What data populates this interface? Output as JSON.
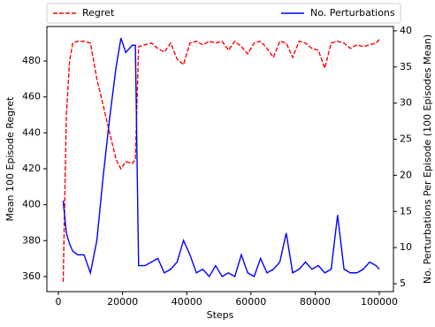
{
  "chart_data": {
    "type": "line",
    "xlabel": "Steps",
    "ylabel": "Mean 100 Episode Regret",
    "y2label": "No. Perturbations Per Episode (100 Episodes Mean)",
    "x": [
      1500,
      2500,
      3500,
      4500,
      6000,
      8000,
      10000,
      12000,
      14000,
      16000,
      18000,
      19500,
      21000,
      23000,
      24000,
      25000,
      27000,
      29000,
      31000,
      33000,
      35000,
      37000,
      39000,
      41000,
      43000,
      45000,
      47000,
      49000,
      51000,
      53000,
      55000,
      57000,
      59000,
      61000,
      63000,
      65000,
      67000,
      69000,
      71000,
      73000,
      75000,
      77000,
      79000,
      81000,
      83000,
      85000,
      87000,
      89000,
      91000,
      93000,
      95000,
      97000,
      99000,
      100000
    ],
    "series": [
      {
        "name": "Regret",
        "color": "#ff0000",
        "dashed": true,
        "axis": "y",
        "values": [
          357,
          450,
          480,
          490,
          491,
          491,
          490,
          470,
          455,
          440,
          425,
          420,
          424,
          423,
          425,
          488,
          489,
          490,
          487,
          485,
          490,
          481,
          478,
          490,
          491,
          489,
          491,
          490,
          491,
          486,
          491,
          488,
          484,
          490,
          491,
          487,
          482,
          491,
          490,
          482,
          491,
          490,
          487,
          486,
          476,
          490,
          491,
          490,
          487,
          489,
          488,
          489,
          490,
          492
        ]
      },
      {
        "name": "No. Perturbations",
        "color": "#0000ff",
        "dashed": false,
        "axis": "y2",
        "values": [
          16.5,
          12,
          10.5,
          9.5,
          9,
          9,
          6.5,
          11,
          20,
          28,
          35,
          39,
          37,
          38,
          38,
          7.5,
          7.5,
          8,
          8.5,
          6.5,
          7,
          8,
          11,
          9,
          6.5,
          7,
          6,
          7.5,
          6,
          6.5,
          6,
          9,
          6.5,
          6,
          8.5,
          6.5,
          7,
          8,
          12,
          6.5,
          7,
          8,
          7,
          7.5,
          6.5,
          7,
          14.5,
          7,
          6.5,
          6.5,
          7,
          8,
          7.5,
          7
        ]
      }
    ],
    "xlim": [
      -3580,
      104400
    ],
    "xticks": [
      0,
      20000,
      40000,
      60000,
      80000,
      100000
    ],
    "ylim": [
      351.6,
      499.2
    ],
    "yticks": [
      360,
      380,
      400,
      420,
      440,
      460,
      480
    ],
    "y2lim": [
      3.9,
      40.6
    ],
    "y2ticks": [
      5,
      10,
      15,
      20,
      25,
      30,
      35,
      40
    ],
    "legend": "top"
  }
}
